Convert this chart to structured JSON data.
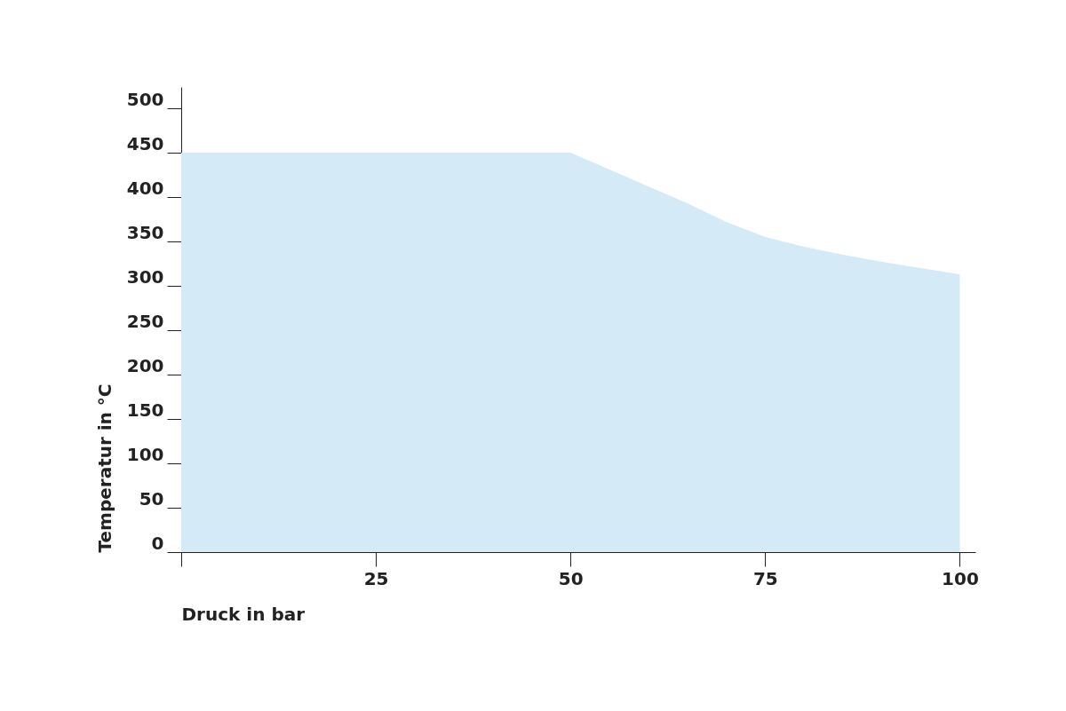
{
  "chart_data": {
    "type": "area",
    "xlabel": "Druck in bar",
    "ylabel": "Temperatur in °C",
    "x": [
      0,
      50,
      60,
      65,
      70,
      75,
      80,
      85,
      90,
      95,
      100
    ],
    "series": [
      {
        "color": "#d4eaf7",
        "values": [
          450,
          450,
          412,
          393,
          372,
          355,
          344,
          335,
          327,
          320,
          313
        ]
      }
    ],
    "xlim": [
      0,
      102
    ],
    "xticks": [
      {
        "value": 0,
        "label": null
      },
      25,
      50,
      75,
      100
    ],
    "ylim": [
      0,
      524
    ],
    "yticks": [
      0,
      50,
      100,
      150,
      200,
      250,
      300,
      350,
      400,
      450,
      500
    ],
    "grid": false
  }
}
